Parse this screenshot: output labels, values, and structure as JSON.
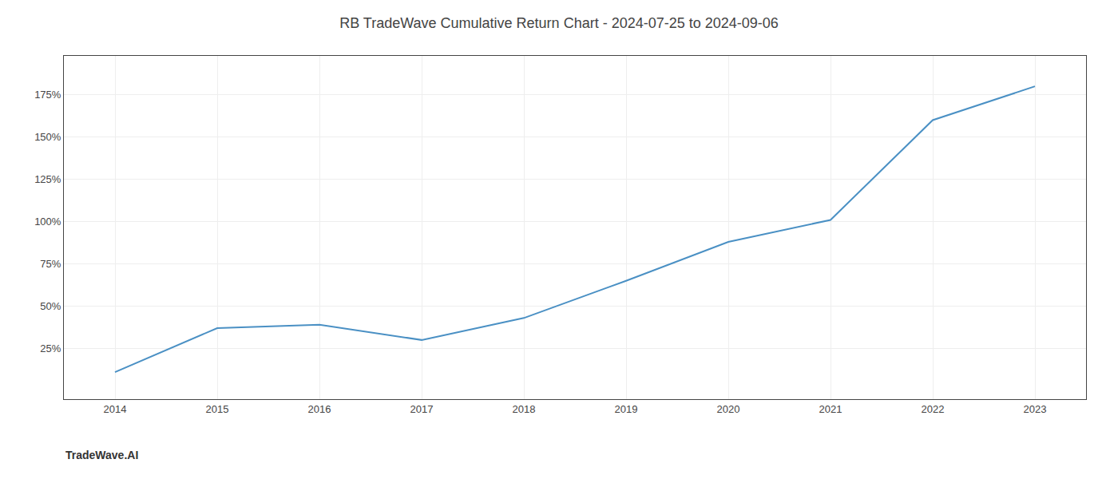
{
  "chart_data": {
    "type": "line",
    "title": "RB TradeWave Cumulative Return Chart - 2024-07-25 to 2024-09-06",
    "annotations": [
      "TradeWave.AI"
    ],
    "x": [
      2014,
      2015,
      2016,
      2017,
      2018,
      2019,
      2020,
      2021,
      2022,
      2023
    ],
    "values": [
      11,
      37,
      39,
      30,
      43,
      65,
      88,
      101,
      160,
      180
    ],
    "color": "#4a90c4",
    "xlim": [
      2013.5,
      2023.5
    ],
    "xticks": [
      2014,
      2015,
      2016,
      2017,
      2018,
      2019,
      2020,
      2021,
      2022,
      2023
    ],
    "ylim": [
      -5,
      198
    ],
    "yticks": [
      {
        "value": 25,
        "label": "25%"
      },
      {
        "value": 50,
        "label": "50%"
      },
      {
        "value": 75,
        "label": "75%"
      },
      {
        "value": 100,
        "label": "100%"
      },
      {
        "value": 125,
        "label": "125%"
      },
      {
        "value": 150,
        "label": "150%"
      },
      {
        "value": 175,
        "label": "175%"
      }
    ],
    "grid": true
  }
}
